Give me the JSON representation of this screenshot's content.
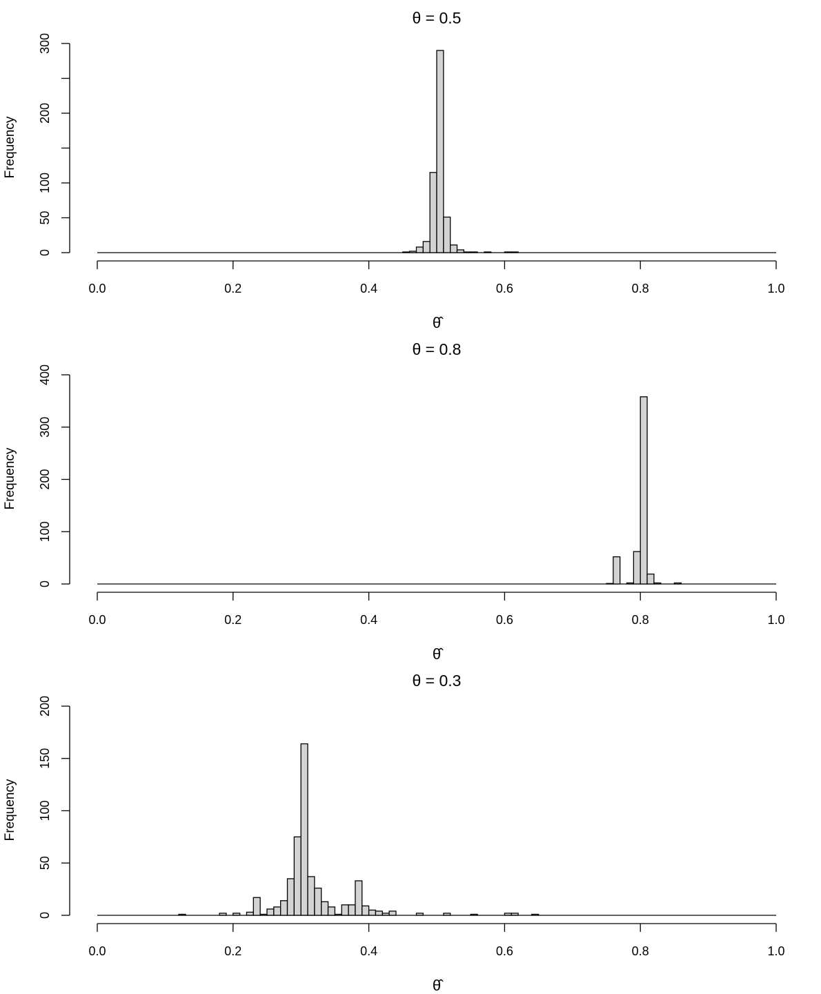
{
  "chart_data": [
    {
      "type": "bar",
      "title": "θ = 0.5",
      "xlabel": "θ̂",
      "ylabel": "Frequency",
      "xlim": [
        0,
        1
      ],
      "ylim": [
        0,
        300
      ],
      "xticks": [
        "0.0",
        "0.2",
        "0.4",
        "0.6",
        "0.8",
        "1.0"
      ],
      "yticks": [
        "0",
        "50",
        "100",
        "200",
        "300"
      ],
      "ytick_values": [
        0,
        50,
        100,
        150,
        200,
        250,
        300
      ],
      "ytick_labeled": [
        true,
        true,
        true,
        false,
        true,
        false,
        true
      ],
      "bin_width": 0.01,
      "bars": [
        {
          "x0": 0.45,
          "x1": 0.46,
          "value": 1
        },
        {
          "x0": 0.46,
          "x1": 0.47,
          "value": 2
        },
        {
          "x0": 0.47,
          "x1": 0.48,
          "value": 8
        },
        {
          "x0": 0.48,
          "x1": 0.49,
          "value": 16
        },
        {
          "x0": 0.49,
          "x1": 0.5,
          "value": 115
        },
        {
          "x0": 0.5,
          "x1": 0.51,
          "value": 290
        },
        {
          "x0": 0.51,
          "x1": 0.52,
          "value": 51
        },
        {
          "x0": 0.52,
          "x1": 0.53,
          "value": 11
        },
        {
          "x0": 0.53,
          "x1": 0.54,
          "value": 4
        },
        {
          "x0": 0.54,
          "x1": 0.55,
          "value": 1
        },
        {
          "x0": 0.55,
          "x1": 0.56,
          "value": 1
        },
        {
          "x0": 0.57,
          "x1": 0.58,
          "value": 1
        },
        {
          "x0": 0.6,
          "x1": 0.61,
          "value": 1
        },
        {
          "x0": 0.61,
          "x1": 0.62,
          "value": 1
        }
      ]
    },
    {
      "type": "bar",
      "title": "θ = 0.8",
      "xlabel": "θ̂",
      "ylabel": "Frequency",
      "xlim": [
        0,
        1
      ],
      "ylim": [
        0,
        400
      ],
      "xticks": [
        "0.0",
        "0.2",
        "0.4",
        "0.6",
        "0.8",
        "1.0"
      ],
      "yticks": [
        "0",
        "100",
        "200",
        "300",
        "400"
      ],
      "ytick_values": [
        0,
        100,
        200,
        300,
        400
      ],
      "ytick_labeled": [
        true,
        true,
        true,
        true,
        true
      ],
      "bin_width": 0.01,
      "bars": [
        {
          "x0": 0.75,
          "x1": 0.76,
          "value": 1
        },
        {
          "x0": 0.76,
          "x1": 0.77,
          "value": 52
        },
        {
          "x0": 0.78,
          "x1": 0.79,
          "value": 2
        },
        {
          "x0": 0.79,
          "x1": 0.8,
          "value": 62
        },
        {
          "x0": 0.8,
          "x1": 0.81,
          "value": 358
        },
        {
          "x0": 0.81,
          "x1": 0.82,
          "value": 19
        },
        {
          "x0": 0.82,
          "x1": 0.83,
          "value": 2
        },
        {
          "x0": 0.85,
          "x1": 0.86,
          "value": 2
        }
      ]
    },
    {
      "type": "bar",
      "title": "θ = 0.3",
      "xlabel": "θ̂",
      "ylabel": "Frequency",
      "xlim": [
        0,
        1
      ],
      "ylim": [
        0,
        200
      ],
      "xticks": [
        "0.0",
        "0.2",
        "0.4",
        "0.6",
        "0.8",
        "1.0"
      ],
      "yticks": [
        "0",
        "50",
        "100",
        "150",
        "200"
      ],
      "ytick_values": [
        0,
        50,
        100,
        150,
        200
      ],
      "ytick_labeled": [
        true,
        true,
        true,
        true,
        true
      ],
      "bin_width": 0.01,
      "bars": [
        {
          "x0": 0.12,
          "x1": 0.13,
          "value": 1
        },
        {
          "x0": 0.18,
          "x1": 0.19,
          "value": 2
        },
        {
          "x0": 0.2,
          "x1": 0.21,
          "value": 2
        },
        {
          "x0": 0.22,
          "x1": 0.23,
          "value": 3
        },
        {
          "x0": 0.23,
          "x1": 0.24,
          "value": 17
        },
        {
          "x0": 0.24,
          "x1": 0.25,
          "value": 1
        },
        {
          "x0": 0.25,
          "x1": 0.26,
          "value": 6
        },
        {
          "x0": 0.26,
          "x1": 0.27,
          "value": 8
        },
        {
          "x0": 0.27,
          "x1": 0.28,
          "value": 14
        },
        {
          "x0": 0.28,
          "x1": 0.29,
          "value": 35
        },
        {
          "x0": 0.29,
          "x1": 0.3,
          "value": 75
        },
        {
          "x0": 0.3,
          "x1": 0.31,
          "value": 164
        },
        {
          "x0": 0.31,
          "x1": 0.32,
          "value": 37
        },
        {
          "x0": 0.32,
          "x1": 0.33,
          "value": 26
        },
        {
          "x0": 0.33,
          "x1": 0.34,
          "value": 13
        },
        {
          "x0": 0.34,
          "x1": 0.35,
          "value": 8
        },
        {
          "x0": 0.35,
          "x1": 0.36,
          "value": 1
        },
        {
          "x0": 0.36,
          "x1": 0.37,
          "value": 10
        },
        {
          "x0": 0.37,
          "x1": 0.38,
          "value": 10
        },
        {
          "x0": 0.38,
          "x1": 0.39,
          "value": 33
        },
        {
          "x0": 0.39,
          "x1": 0.4,
          "value": 9
        },
        {
          "x0": 0.4,
          "x1": 0.41,
          "value": 5
        },
        {
          "x0": 0.41,
          "x1": 0.42,
          "value": 4
        },
        {
          "x0": 0.42,
          "x1": 0.43,
          "value": 2
        },
        {
          "x0": 0.43,
          "x1": 0.44,
          "value": 4
        },
        {
          "x0": 0.47,
          "x1": 0.48,
          "value": 2
        },
        {
          "x0": 0.51,
          "x1": 0.52,
          "value": 2
        },
        {
          "x0": 0.55,
          "x1": 0.56,
          "value": 1
        },
        {
          "x0": 0.6,
          "x1": 0.61,
          "value": 2
        },
        {
          "x0": 0.61,
          "x1": 0.62,
          "value": 2
        },
        {
          "x0": 0.64,
          "x1": 0.65,
          "value": 1
        }
      ]
    }
  ]
}
